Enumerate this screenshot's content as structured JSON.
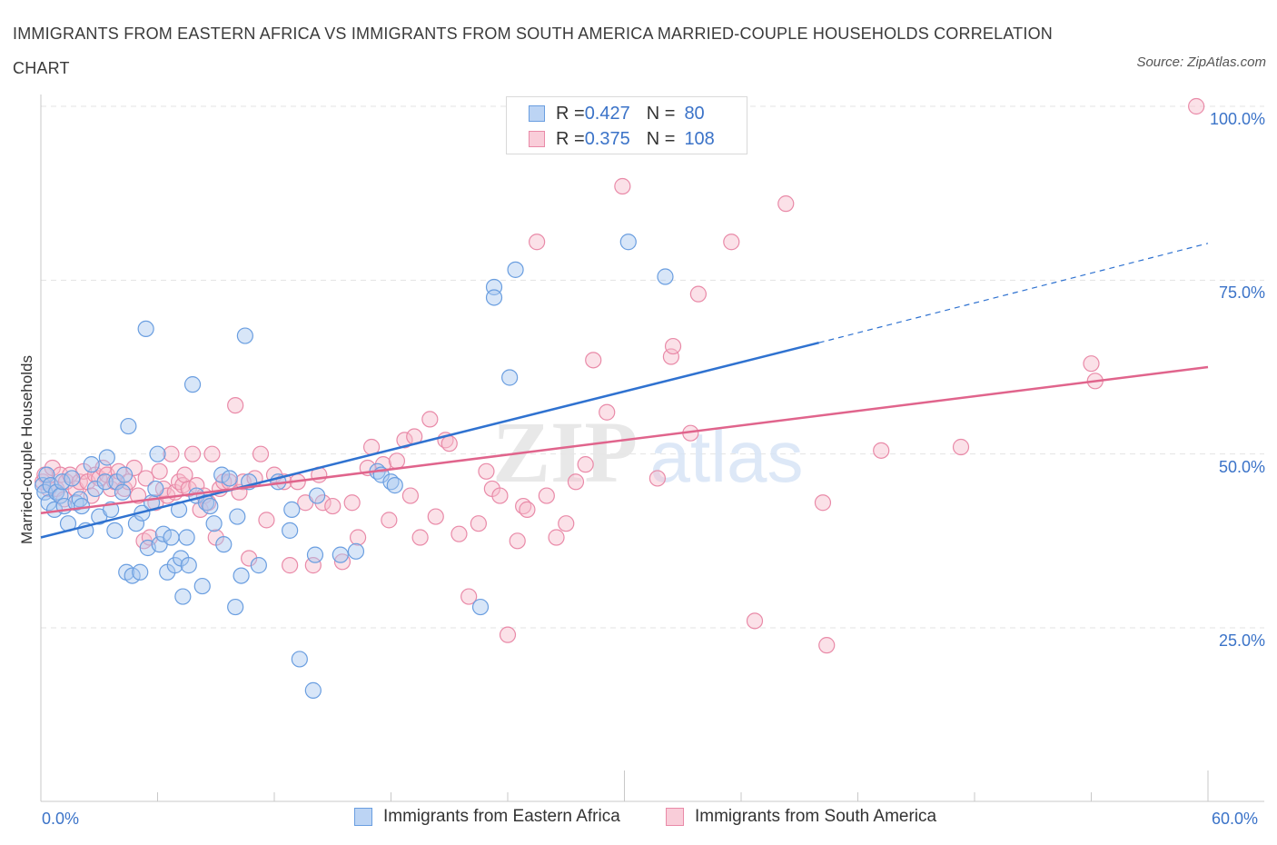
{
  "title": "IMMIGRANTS FROM EASTERN AFRICA VS IMMIGRANTS FROM SOUTH AMERICA MARRIED-COUPLE HOUSEHOLDS CORRELATION CHART",
  "source": "Source: ZipAtlas.com",
  "colors": {
    "blue_fill": "#a8c8f0",
    "blue_stroke": "#6a9ee0",
    "blue_line": "#2f72d0",
    "pink_fill": "#f6bccd",
    "pink_stroke": "#e98aa8",
    "pink_line": "#e0648c",
    "grid": "#e3e3e3",
    "label": "#3b73c8"
  },
  "legend": {
    "blue": {
      "r_label": "R = ",
      "r_value": "0.427",
      "n_label": "N = ",
      "n_value": "80"
    },
    "pink": {
      "r_label": "R = ",
      "r_value": "0.375",
      "n_label": "N = ",
      "n_value": "108"
    }
  },
  "chart_data": {
    "type": "scatter",
    "title": "IMMIGRANTS FROM EASTERN AFRICA VS IMMIGRANTS FROM SOUTH AMERICA MARRIED-COUPLE HOUSEHOLDS CORRELATION CHART",
    "xlabel": "",
    "ylabel": "Married-couple Households",
    "x_unit": "%",
    "xlim": [
      0,
      60
    ],
    "ylim": [
      0,
      100
    ],
    "x_tick_labels": [
      "0.0%",
      "60.0%"
    ],
    "y_tick_labels": [
      "25.0%",
      "50.0%",
      "75.0%",
      "100.0%"
    ],
    "y_ticks": [
      25,
      50,
      75,
      100
    ],
    "grid": true,
    "legend_position": "bottom",
    "watermark": "ZIPatlas",
    "series": [
      {
        "name": "Immigrants from Eastern Africa",
        "color": "blue",
        "trend": {
          "x0": 0,
          "y0": 38.0,
          "x1": 40,
          "y1": 66.0,
          "dashed_to": 60,
          "dashed_y": 80.3
        },
        "points": [
          [
            0.1,
            45.5
          ],
          [
            0.2,
            44.5
          ],
          [
            0.3,
            47
          ],
          [
            0.4,
            43
          ],
          [
            0.5,
            45.5
          ],
          [
            0.7,
            42
          ],
          [
            0.8,
            44.5
          ],
          [
            1.0,
            44
          ],
          [
            1.1,
            46
          ],
          [
            1.2,
            42.5
          ],
          [
            1.4,
            40
          ],
          [
            1.6,
            46.5
          ],
          [
            1.8,
            43
          ],
          [
            2.0,
            43.5
          ],
          [
            2.1,
            42.5
          ],
          [
            2.3,
            39
          ],
          [
            2.6,
            48.5
          ],
          [
            2.8,
            45
          ],
          [
            3.0,
            41
          ],
          [
            3.3,
            46
          ],
          [
            3.4,
            49.5
          ],
          [
            3.6,
            42
          ],
          [
            3.9,
            46
          ],
          [
            3.8,
            39
          ],
          [
            4.2,
            44.5
          ],
          [
            4.3,
            47
          ],
          [
            4.4,
            33
          ],
          [
            4.5,
            54
          ],
          [
            4.7,
            32.5
          ],
          [
            4.9,
            40
          ],
          [
            5.1,
            33
          ],
          [
            5.2,
            41.5
          ],
          [
            5.4,
            68
          ],
          [
            5.5,
            36.5
          ],
          [
            5.7,
            43
          ],
          [
            5.9,
            45
          ],
          [
            6.0,
            50
          ],
          [
            6.1,
            37
          ],
          [
            6.3,
            38.5
          ],
          [
            6.5,
            33
          ],
          [
            6.7,
            38
          ],
          [
            6.9,
            34
          ],
          [
            7.1,
            42
          ],
          [
            7.2,
            35
          ],
          [
            7.3,
            29.5
          ],
          [
            7.5,
            38
          ],
          [
            7.6,
            34
          ],
          [
            7.8,
            60
          ],
          [
            8.0,
            44
          ],
          [
            8.3,
            31
          ],
          [
            8.5,
            43
          ],
          [
            8.7,
            42.5
          ],
          [
            8.9,
            40
          ],
          [
            9.3,
            47
          ],
          [
            9.4,
            37
          ],
          [
            9.7,
            46.5
          ],
          [
            10.0,
            28
          ],
          [
            10.1,
            41
          ],
          [
            10.3,
            32.5
          ],
          [
            10.5,
            67
          ],
          [
            10.7,
            46
          ],
          [
            11.2,
            34
          ],
          [
            12.2,
            46
          ],
          [
            12.8,
            39
          ],
          [
            12.9,
            42
          ],
          [
            13.3,
            20.5
          ],
          [
            14.0,
            16
          ],
          [
            14.2,
            44
          ],
          [
            14.1,
            35.5
          ],
          [
            15.4,
            35.5
          ],
          [
            16.2,
            36
          ],
          [
            17.3,
            47.5
          ],
          [
            17.5,
            47
          ],
          [
            18.0,
            46
          ],
          [
            18.2,
            45.5
          ],
          [
            22.6,
            28
          ],
          [
            23.3,
            74
          ],
          [
            23.3,
            72.5
          ],
          [
            24.1,
            61
          ],
          [
            24.4,
            76.5
          ],
          [
            30.2,
            80.5
          ],
          [
            32.1,
            75.5
          ]
        ]
      },
      {
        "name": "Immigrants from South America",
        "color": "pink",
        "trend": {
          "x0": 0,
          "y0": 41.5,
          "x1": 60,
          "y1": 62.5
        },
        "points": [
          [
            0.1,
            46
          ],
          [
            0.2,
            47
          ],
          [
            0.4,
            45
          ],
          [
            0.6,
            48
          ],
          [
            0.8,
            45
          ],
          [
            1.0,
            47
          ],
          [
            1.2,
            43.5
          ],
          [
            1.3,
            46
          ],
          [
            1.5,
            47
          ],
          [
            1.8,
            45
          ],
          [
            2.0,
            46
          ],
          [
            2.2,
            47.5
          ],
          [
            2.4,
            46
          ],
          [
            2.6,
            44
          ],
          [
            2.8,
            47
          ],
          [
            3.0,
            46.5
          ],
          [
            3.2,
            48
          ],
          [
            3.4,
            47
          ],
          [
            3.6,
            45
          ],
          [
            3.8,
            46
          ],
          [
            4.0,
            47.5
          ],
          [
            4.3,
            45
          ],
          [
            4.5,
            46
          ],
          [
            4.8,
            48
          ],
          [
            5.0,
            44
          ],
          [
            5.3,
            37.5
          ],
          [
            5.4,
            46.5
          ],
          [
            5.6,
            38
          ],
          [
            5.9,
            43
          ],
          [
            6.1,
            47.5
          ],
          [
            6.3,
            45
          ],
          [
            6.5,
            44
          ],
          [
            6.7,
            50
          ],
          [
            6.9,
            44.5
          ],
          [
            7.1,
            46
          ],
          [
            7.3,
            45.5
          ],
          [
            7.4,
            47
          ],
          [
            7.6,
            45
          ],
          [
            7.8,
            50
          ],
          [
            8.0,
            45.5
          ],
          [
            8.2,
            42
          ],
          [
            8.4,
            44
          ],
          [
            8.6,
            43
          ],
          [
            8.8,
            50
          ],
          [
            9.0,
            38
          ],
          [
            9.2,
            45
          ],
          [
            9.4,
            46
          ],
          [
            9.7,
            46
          ],
          [
            10.0,
            57
          ],
          [
            10.2,
            44.5
          ],
          [
            10.4,
            46
          ],
          [
            10.7,
            35
          ],
          [
            11.0,
            46.5
          ],
          [
            11.3,
            50
          ],
          [
            11.6,
            40.5
          ],
          [
            12.0,
            47
          ],
          [
            12.5,
            46
          ],
          [
            12.8,
            34
          ],
          [
            13.2,
            46
          ],
          [
            13.6,
            43
          ],
          [
            14.0,
            34
          ],
          [
            14.3,
            47
          ],
          [
            14.5,
            43
          ],
          [
            15.0,
            42.5
          ],
          [
            15.5,
            34.5
          ],
          [
            16.0,
            43
          ],
          [
            16.3,
            38
          ],
          [
            16.8,
            48
          ],
          [
            17.0,
            51
          ],
          [
            17.6,
            48.5
          ],
          [
            17.9,
            40.5
          ],
          [
            18.3,
            49
          ],
          [
            18.7,
            52
          ],
          [
            19.0,
            44
          ],
          [
            19.2,
            52.5
          ],
          [
            19.5,
            38
          ],
          [
            20.0,
            55
          ],
          [
            20.3,
            41
          ],
          [
            20.8,
            52
          ],
          [
            21.0,
            51.5
          ],
          [
            21.5,
            38.5
          ],
          [
            22.0,
            29.5
          ],
          [
            22.5,
            40
          ],
          [
            22.9,
            47.5
          ],
          [
            23.2,
            45
          ],
          [
            23.6,
            44
          ],
          [
            24.0,
            24
          ],
          [
            24.5,
            37.5
          ],
          [
            24.8,
            42.5
          ],
          [
            25.0,
            42
          ],
          [
            25.5,
            80.5
          ],
          [
            26.0,
            44
          ],
          [
            26.5,
            38
          ],
          [
            27.0,
            40
          ],
          [
            27.5,
            46
          ],
          [
            28.0,
            48.5
          ],
          [
            28.4,
            63.5
          ],
          [
            29.1,
            56
          ],
          [
            29.9,
            88.5
          ],
          [
            31.7,
            46.5
          ],
          [
            32.4,
            64
          ],
          [
            32.5,
            65.5
          ],
          [
            33.4,
            53
          ],
          [
            33.8,
            73
          ],
          [
            35.5,
            80.5
          ],
          [
            36.7,
            26
          ],
          [
            38.3,
            86
          ],
          [
            40.2,
            43
          ],
          [
            40.4,
            22.5
          ],
          [
            43.2,
            50.5
          ],
          [
            47.3,
            51
          ],
          [
            54.0,
            63
          ],
          [
            54.2,
            60.5
          ],
          [
            59.4,
            100
          ]
        ]
      }
    ]
  }
}
